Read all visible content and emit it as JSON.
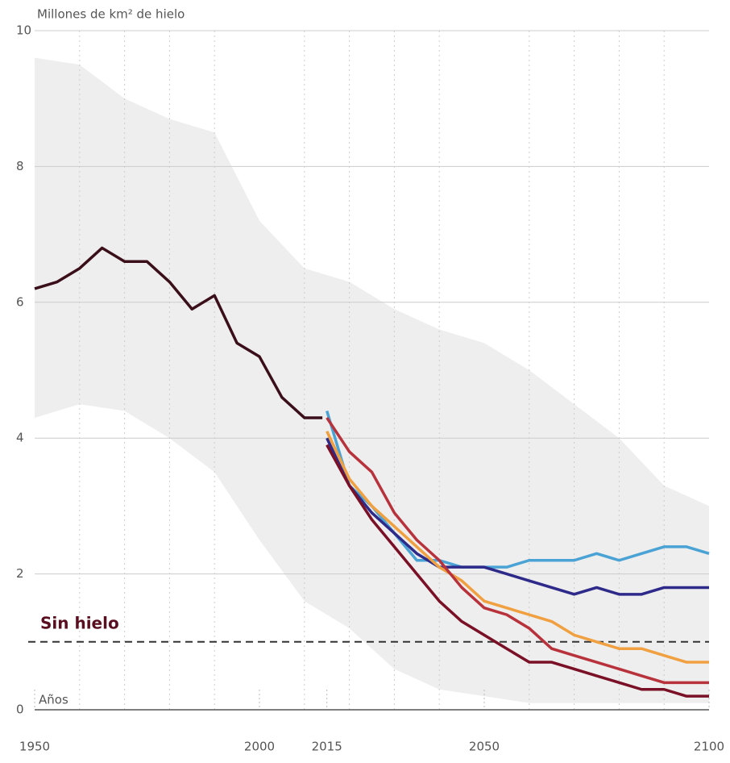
{
  "chart_data": {
    "type": "line",
    "y_label": "Millones de km² de hielo",
    "x_label": "Años",
    "annotation": {
      "text": "Sin hielo",
      "value": 1
    },
    "xlim": [
      1950,
      2100
    ],
    "ylim": [
      0,
      10
    ],
    "xticks": [
      1950,
      2000,
      2015,
      2050,
      2100
    ],
    "xminor": [
      1960,
      1970,
      1980,
      1990,
      2010,
      2020,
      2030,
      2040,
      2060,
      2070,
      2080,
      2090
    ],
    "yticks": [
      0,
      2,
      4,
      6,
      8,
      10
    ],
    "grid": true,
    "band": {
      "color": "#eeeeee",
      "x": [
        1950,
        1960,
        1970,
        1980,
        1990,
        2000,
        2010,
        2020,
        2030,
        2040,
        2050,
        2060,
        2070,
        2080,
        2090,
        2100
      ],
      "upper": [
        9.6,
        9.5,
        9.0,
        8.7,
        8.5,
        7.2,
        6.5,
        6.3,
        5.9,
        5.6,
        5.4,
        5.0,
        4.5,
        4.0,
        3.3,
        3.0
      ],
      "lower": [
        4.3,
        4.5,
        4.4,
        4.0,
        3.5,
        2.5,
        1.6,
        1.2,
        0.6,
        0.3,
        0.2,
        0.1,
        0.1,
        0.1,
        0.1,
        0.1
      ]
    },
    "series": [
      {
        "color": "#3a0f1a",
        "x": [
          1950,
          1955,
          1960,
          1965,
          1970,
          1975,
          1980,
          1985,
          1990,
          1995,
          2000,
          2005,
          2010,
          2014
        ],
        "values": [
          6.2,
          6.3,
          6.5,
          6.8,
          6.6,
          6.6,
          6.3,
          5.9,
          6.1,
          5.4,
          5.2,
          4.6,
          4.3,
          4.3
        ]
      },
      {
        "color": "#4aa3d4",
        "x": [
          2015,
          2020,
          2025,
          2030,
          2035,
          2040,
          2045,
          2050,
          2055,
          2060,
          2065,
          2070,
          2075,
          2080,
          2085,
          2090,
          2095,
          2100
        ],
        "values": [
          4.4,
          3.3,
          3.0,
          2.6,
          2.2,
          2.2,
          2.1,
          2.1,
          2.1,
          2.2,
          2.2,
          2.2,
          2.3,
          2.2,
          2.3,
          2.4,
          2.4,
          2.3
        ]
      },
      {
        "color": "#2e2a8a",
        "x": [
          2015,
          2020,
          2025,
          2030,
          2035,
          2040,
          2045,
          2050,
          2055,
          2060,
          2065,
          2070,
          2075,
          2080,
          2085,
          2090,
          2095,
          2100
        ],
        "values": [
          4.0,
          3.3,
          2.9,
          2.6,
          2.3,
          2.1,
          2.1,
          2.1,
          2.0,
          1.9,
          1.8,
          1.7,
          1.8,
          1.7,
          1.7,
          1.8,
          1.8,
          1.8
        ]
      },
      {
        "color": "#f0a040",
        "x": [
          2015,
          2020,
          2025,
          2030,
          2035,
          2040,
          2045,
          2050,
          2055,
          2060,
          2065,
          2070,
          2075,
          2080,
          2085,
          2090,
          2095,
          2100
        ],
        "values": [
          4.1,
          3.4,
          3.0,
          2.7,
          2.4,
          2.1,
          1.9,
          1.6,
          1.5,
          1.4,
          1.3,
          1.1,
          1.0,
          0.9,
          0.9,
          0.8,
          0.7,
          0.7
        ]
      },
      {
        "color": "#b8323c",
        "x": [
          2015,
          2020,
          2025,
          2030,
          2035,
          2040,
          2045,
          2050,
          2055,
          2060,
          2065,
          2070,
          2075,
          2080,
          2085,
          2090,
          2095,
          2100
        ],
        "values": [
          4.3,
          3.8,
          3.5,
          2.9,
          2.5,
          2.2,
          1.8,
          1.5,
          1.4,
          1.2,
          0.9,
          0.8,
          0.7,
          0.6,
          0.5,
          0.4,
          0.4,
          0.4
        ]
      },
      {
        "color": "#7a1025",
        "x": [
          2015,
          2020,
          2025,
          2030,
          2035,
          2040,
          2045,
          2050,
          2055,
          2060,
          2065,
          2070,
          2075,
          2080,
          2085,
          2090,
          2095,
          2100
        ],
        "values": [
          3.9,
          3.3,
          2.8,
          2.4,
          2.0,
          1.6,
          1.3,
          1.1,
          0.9,
          0.7,
          0.7,
          0.6,
          0.5,
          0.4,
          0.3,
          0.3,
          0.2,
          0.2
        ]
      }
    ]
  }
}
